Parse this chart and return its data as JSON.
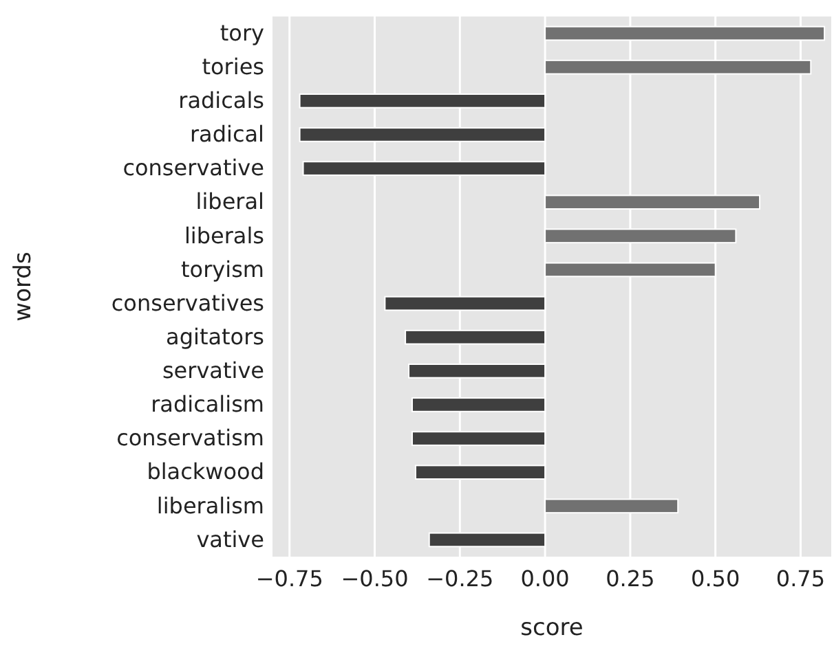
{
  "chart_data": {
    "type": "bar",
    "orientation": "horizontal",
    "xlabel": "score",
    "ylabel": "words",
    "categories": [
      "tory",
      "tories",
      "radicals",
      "radical",
      "conservative",
      "liberal",
      "liberals",
      "toryism",
      "conservatives",
      "agitators",
      "servative",
      "radicalism",
      "conservatism",
      "blackwood",
      "liberalism",
      "vative"
    ],
    "values": [
      0.82,
      0.78,
      -0.72,
      -0.72,
      -0.71,
      0.63,
      0.56,
      0.5,
      -0.47,
      -0.41,
      -0.4,
      -0.39,
      -0.39,
      -0.38,
      0.39,
      -0.34
    ],
    "colors": [
      "#717171",
      "#717171",
      "#3f3f3f",
      "#3f3f3f",
      "#3f3f3f",
      "#717171",
      "#717171",
      "#717171",
      "#3f3f3f",
      "#3f3f3f",
      "#3f3f3f",
      "#3f3f3f",
      "#3f3f3f",
      "#3f3f3f",
      "#717171",
      "#3f3f3f"
    ],
    "xlim": [
      -0.8,
      0.84
    ],
    "xticks": [
      {
        "value": -0.75,
        "label": "−0.75"
      },
      {
        "value": -0.5,
        "label": "−0.50"
      },
      {
        "value": -0.25,
        "label": "−0.25"
      },
      {
        "value": 0,
        "label": "0.00"
      },
      {
        "value": 0.25,
        "label": "0.25"
      },
      {
        "value": 0.5,
        "label": "0.50"
      },
      {
        "value": 0.75,
        "label": "0.75"
      }
    ],
    "grid": "x"
  }
}
